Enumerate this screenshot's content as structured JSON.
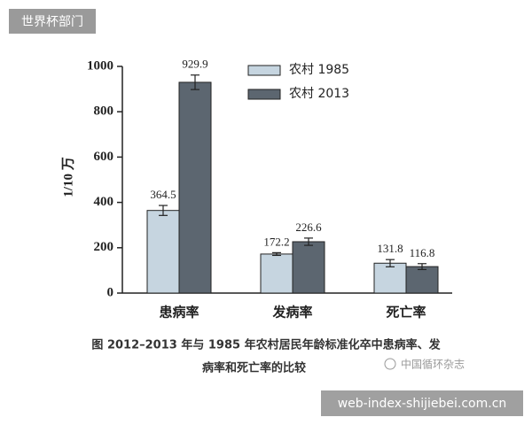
{
  "badge": "世界杯部门",
  "footer": "web-index-shijiebei.com.cn",
  "source_mark": "中国循环杂志",
  "chart_data": {
    "type": "bar",
    "ylabel": "1/10 万",
    "categories": [
      "患病率",
      "发病率",
      "死亡率"
    ],
    "series": [
      {
        "name": "农村 1985",
        "color": "#c6d5e0",
        "values": [
          364.5,
          172.2,
          131.8
        ],
        "errors": [
          22,
          6,
          16
        ]
      },
      {
        "name": "农村 2013",
        "color": "#5c6670",
        "values": [
          929.9,
          226.6,
          116.8
        ],
        "errors": [
          32,
          16,
          13
        ]
      }
    ],
    "ylim": [
      0,
      1000
    ],
    "yticks": [
      0,
      200,
      400,
      600,
      800,
      1000
    ],
    "legend": "top",
    "caption": [
      "图  2012–2013 年与 1985 年农村居民年龄标准化卒中患病率、发",
      "病率和死亡率的比较"
    ]
  }
}
